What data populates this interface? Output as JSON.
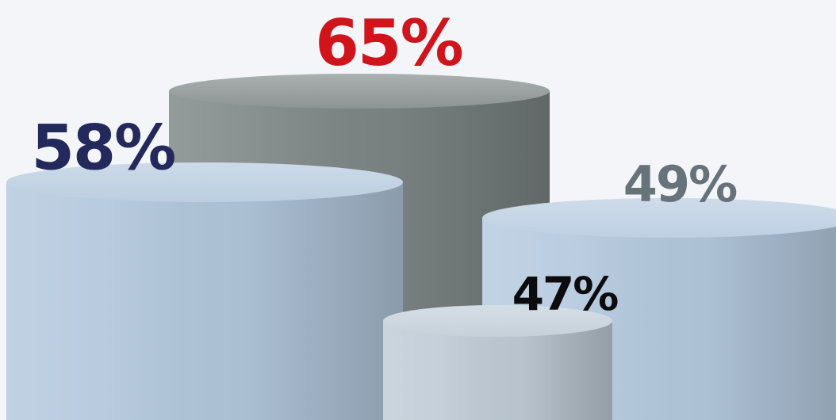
{
  "chart_data": {
    "type": "cylinder",
    "values": [
      65,
      58,
      49,
      47
    ],
    "value_labels": [
      "65%",
      "58%",
      "49%",
      "47%"
    ],
    "colors": [
      "#7d8585",
      "#b2c7dc",
      "#b4c9de",
      "#bfcbd6"
    ],
    "label_colors": [
      "#d0141c",
      "#23295a",
      "#67737a",
      "#0c0c0e"
    ]
  }
}
